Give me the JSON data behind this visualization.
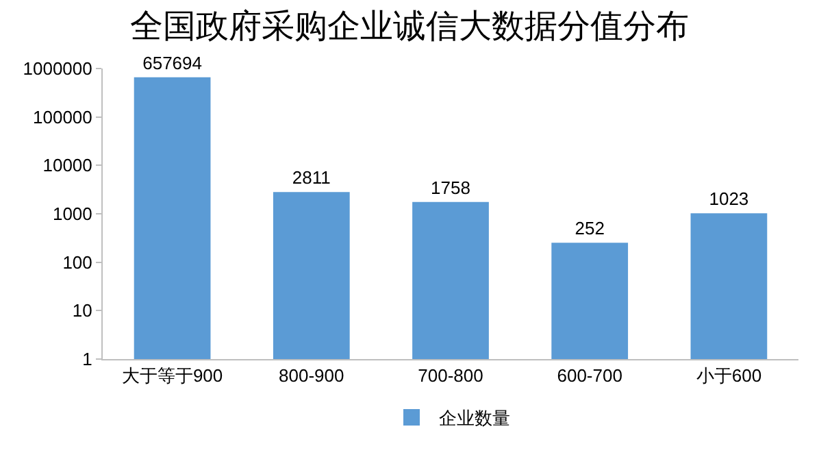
{
  "chart_data": {
    "type": "bar",
    "title": "全国政府采购企业诚信大数据分值分布",
    "categories": [
      "大于等于900",
      "800-900",
      "700-800",
      "600-700",
      "小于600"
    ],
    "series": [
      {
        "name": "企业数量",
        "color": "#5b9bd5",
        "values": [
          657694,
          2811,
          1758,
          252,
          1023
        ]
      }
    ],
    "log": true,
    "ylim": [
      1,
      1000000
    ],
    "yticks": [
      1,
      10,
      100,
      1000,
      10000,
      100000,
      1000000
    ],
    "data_labels": true,
    "grid": false,
    "legend": "bottom"
  }
}
